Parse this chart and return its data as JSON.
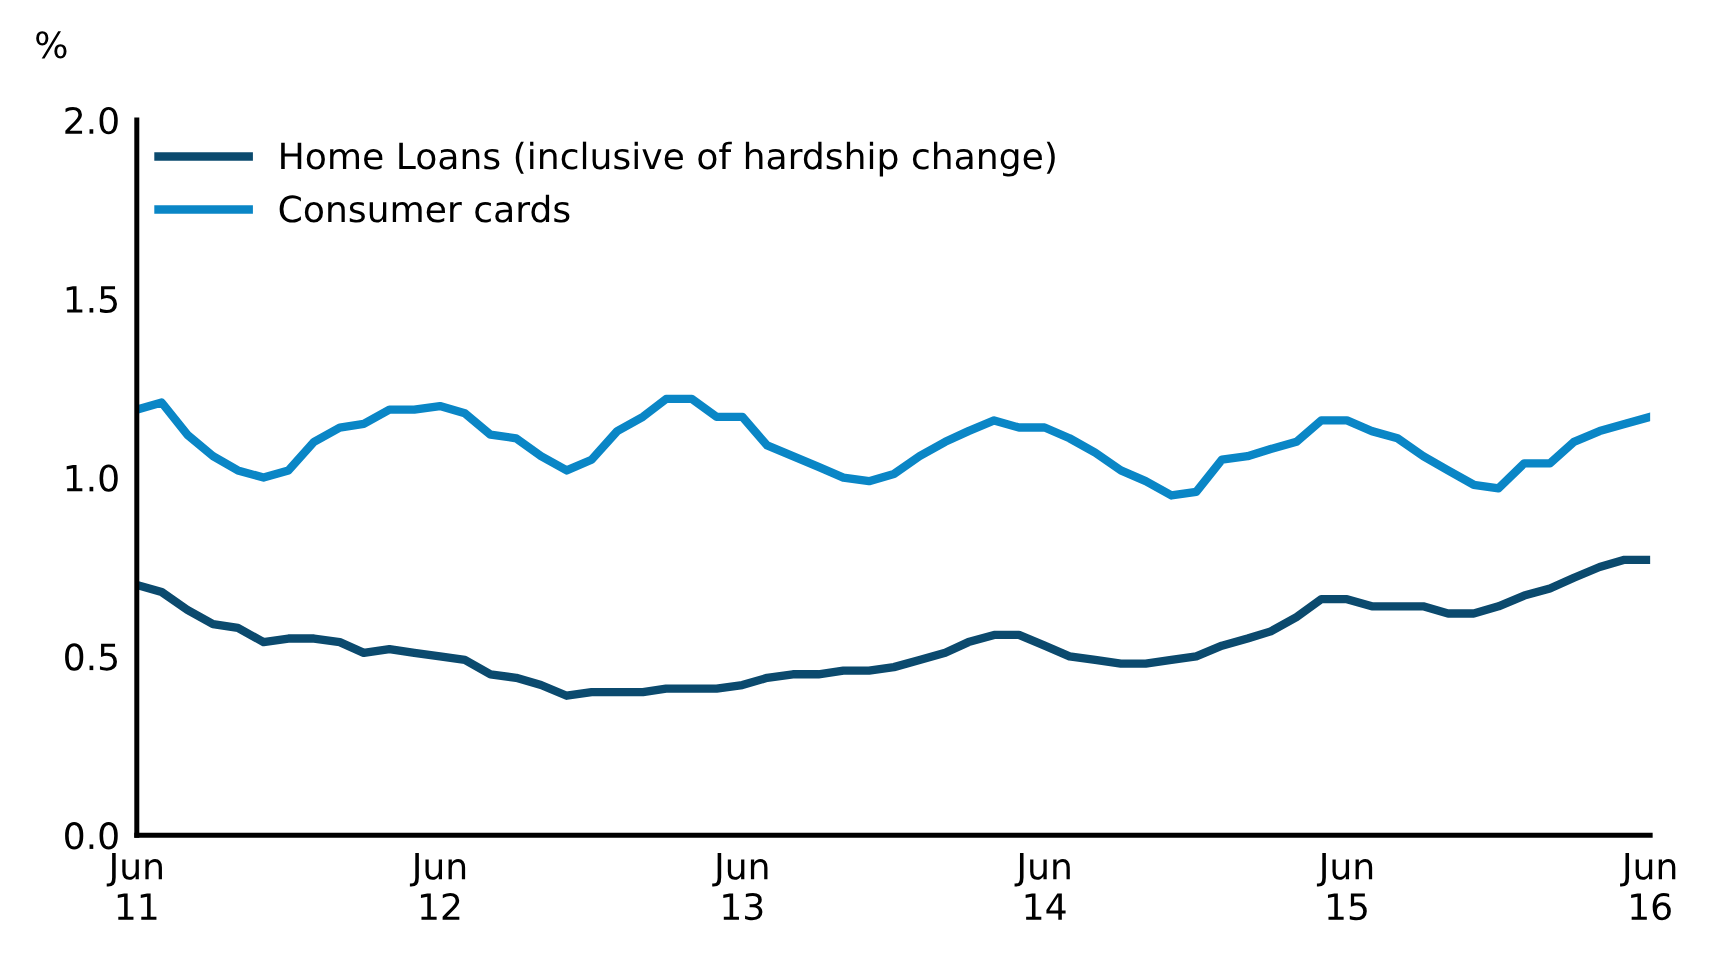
{
  "chart_data": {
    "type": "line",
    "ylabel": "%",
    "x": [
      "2011-06",
      "2011-07",
      "2011-08",
      "2011-09",
      "2011-10",
      "2011-11",
      "2011-12",
      "2012-01",
      "2012-02",
      "2012-03",
      "2012-04",
      "2012-05",
      "2012-06",
      "2012-07",
      "2012-08",
      "2012-09",
      "2012-10",
      "2012-11",
      "2012-12",
      "2013-01",
      "2013-02",
      "2013-03",
      "2013-04",
      "2013-05",
      "2013-06",
      "2013-07",
      "2013-08",
      "2013-09",
      "2013-10",
      "2013-11",
      "2013-12",
      "2014-01",
      "2014-02",
      "2014-03",
      "2014-04",
      "2014-05",
      "2014-06",
      "2014-07",
      "2014-08",
      "2014-09",
      "2014-10",
      "2014-11",
      "2014-12",
      "2015-01",
      "2015-02",
      "2015-03",
      "2015-04",
      "2015-05",
      "2015-06",
      "2015-07",
      "2015-08",
      "2015-09",
      "2015-10",
      "2015-11",
      "2015-12",
      "2016-01",
      "2016-02",
      "2016-03",
      "2016-04",
      "2016-05",
      "2016-06"
    ],
    "series": [
      {
        "name": "Home Loans (inclusive of hardship change)",
        "color": "#0b4a6e",
        "values": [
          0.7,
          0.68,
          0.63,
          0.59,
          0.58,
          0.54,
          0.55,
          0.55,
          0.54,
          0.51,
          0.52,
          0.51,
          0.5,
          0.49,
          0.45,
          0.44,
          0.42,
          0.39,
          0.4,
          0.4,
          0.4,
          0.41,
          0.41,
          0.41,
          0.42,
          0.44,
          0.45,
          0.45,
          0.46,
          0.46,
          0.47,
          0.49,
          0.51,
          0.54,
          0.56,
          0.56,
          0.53,
          0.5,
          0.49,
          0.48,
          0.48,
          0.49,
          0.5,
          0.53,
          0.55,
          0.57,
          0.61,
          0.66,
          0.66,
          0.64,
          0.64,
          0.64,
          0.62,
          0.62,
          0.64,
          0.67,
          0.69,
          0.72,
          0.75,
          0.77,
          0.77
        ]
      },
      {
        "name": "Consumer cards",
        "color": "#0a86c6",
        "values": [
          1.19,
          1.21,
          1.12,
          1.06,
          1.02,
          1.0,
          1.02,
          1.1,
          1.14,
          1.15,
          1.19,
          1.19,
          1.2,
          1.18,
          1.12,
          1.11,
          1.06,
          1.02,
          1.05,
          1.13,
          1.17,
          1.22,
          1.22,
          1.17,
          1.17,
          1.09,
          1.06,
          1.03,
          1.0,
          0.99,
          1.01,
          1.06,
          1.1,
          1.13,
          1.16,
          1.14,
          1.14,
          1.11,
          1.07,
          1.02,
          0.99,
          0.95,
          0.96,
          1.05,
          1.06,
          1.08,
          1.1,
          1.16,
          1.16,
          1.13,
          1.11,
          1.06,
          1.02,
          0.98,
          0.97,
          1.04,
          1.04,
          1.1,
          1.13,
          1.15,
          1.17
        ]
      }
    ],
    "xlim": [
      "2011-06",
      "2016-06"
    ],
    "xticks": [
      {
        "value": "2011-06",
        "label": "Jun\n11"
      },
      {
        "value": "2012-06",
        "label": "Jun\n12"
      },
      {
        "value": "2013-06",
        "label": "Jun\n13"
      },
      {
        "value": "2014-06",
        "label": "Jun\n14"
      },
      {
        "value": "2015-06",
        "label": "Jun\n15"
      },
      {
        "value": "2016-06",
        "label": "Jun\n16"
      }
    ],
    "ylim": [
      0,
      2
    ],
    "yticks": [
      {
        "value": 0,
        "label": "0.0"
      },
      {
        "value": 0.5,
        "label": "0.5"
      },
      {
        "value": 1,
        "label": "1.0"
      },
      {
        "value": 1.5,
        "label": "1.5"
      },
      {
        "value": 2,
        "label": "2.0"
      }
    ],
    "grid": false,
    "legend": "top left",
    "marker": "none",
    "line_style": "solid"
  }
}
